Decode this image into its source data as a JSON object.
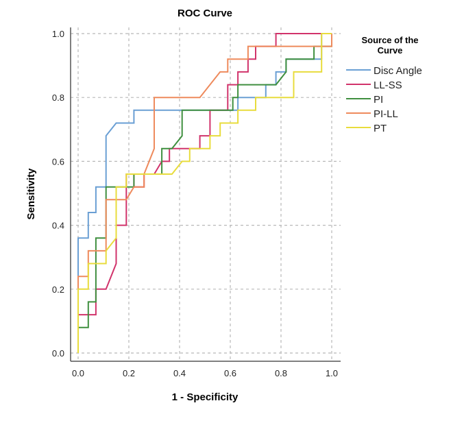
{
  "chart_data": {
    "type": "line",
    "title": "ROC Curve",
    "xlabel": "1 - Specificity",
    "ylabel": "Sensitivity",
    "xlim": [
      0,
      1
    ],
    "ylim": [
      0,
      1
    ],
    "xticks": [
      "0.0",
      "0.2",
      "0.4",
      "0.6",
      "0.8",
      "1.0"
    ],
    "yticks": [
      "0.0",
      "0.2",
      "0.4",
      "0.6",
      "0.8",
      "1.0"
    ],
    "grid": true,
    "legend": {
      "title": "Source of the Curve",
      "title_lines": [
        "Source of the",
        "Curve"
      ],
      "placement": "right"
    },
    "series": [
      {
        "name": "Disc Angle",
        "color": "#6a9fd4",
        "points": [
          [
            0,
            0
          ],
          [
            0,
            0.36
          ],
          [
            0.04,
            0.36
          ],
          [
            0.04,
            0.44
          ],
          [
            0.07,
            0.44
          ],
          [
            0.07,
            0.52
          ],
          [
            0.11,
            0.52
          ],
          [
            0.11,
            0.68
          ],
          [
            0.15,
            0.72
          ],
          [
            0.22,
            0.72
          ],
          [
            0.22,
            0.76
          ],
          [
            0.63,
            0.76
          ],
          [
            0.63,
            0.8
          ],
          [
            0.74,
            0.8
          ],
          [
            0.74,
            0.84
          ],
          [
            0.78,
            0.84
          ],
          [
            0.78,
            0.88
          ],
          [
            0.82,
            0.88
          ],
          [
            0.82,
            0.92
          ],
          [
            0.96,
            0.92
          ],
          [
            0.96,
            1.0
          ],
          [
            1,
            1
          ]
        ]
      },
      {
        "name": "LL-SS",
        "color": "#d1336b",
        "points": [
          [
            0,
            0
          ],
          [
            0,
            0.12
          ],
          [
            0.07,
            0.12
          ],
          [
            0.07,
            0.2
          ],
          [
            0.11,
            0.2
          ],
          [
            0.15,
            0.28
          ],
          [
            0.15,
            0.4
          ],
          [
            0.19,
            0.4
          ],
          [
            0.19,
            0.56
          ],
          [
            0.22,
            0.56
          ],
          [
            0.22,
            0.52
          ],
          [
            0.26,
            0.52
          ],
          [
            0.26,
            0.56
          ],
          [
            0.3,
            0.56
          ],
          [
            0.33,
            0.6
          ],
          [
            0.36,
            0.6
          ],
          [
            0.36,
            0.64
          ],
          [
            0.41,
            0.64
          ],
          [
            0.48,
            0.64
          ],
          [
            0.48,
            0.68
          ],
          [
            0.52,
            0.68
          ],
          [
            0.52,
            0.76
          ],
          [
            0.59,
            0.76
          ],
          [
            0.59,
            0.84
          ],
          [
            0.63,
            0.84
          ],
          [
            0.63,
            0.88
          ],
          [
            0.67,
            0.88
          ],
          [
            0.67,
            0.92
          ],
          [
            0.7,
            0.92
          ],
          [
            0.7,
            0.96
          ],
          [
            0.78,
            0.96
          ],
          [
            0.78,
            1.0
          ],
          [
            1,
            1
          ]
        ]
      },
      {
        "name": "PI",
        "color": "#3f8f3f",
        "points": [
          [
            0,
            0
          ],
          [
            0,
            0.08
          ],
          [
            0.04,
            0.08
          ],
          [
            0.04,
            0.16
          ],
          [
            0.07,
            0.16
          ],
          [
            0.07,
            0.36
          ],
          [
            0.11,
            0.36
          ],
          [
            0.11,
            0.52
          ],
          [
            0.22,
            0.52
          ],
          [
            0.22,
            0.56
          ],
          [
            0.33,
            0.56
          ],
          [
            0.33,
            0.64
          ],
          [
            0.37,
            0.64
          ],
          [
            0.41,
            0.68
          ],
          [
            0.41,
            0.76
          ],
          [
            0.61,
            0.76
          ],
          [
            0.61,
            0.8
          ],
          [
            0.63,
            0.8
          ],
          [
            0.63,
            0.84
          ],
          [
            0.78,
            0.84
          ],
          [
            0.82,
            0.88
          ],
          [
            0.82,
            0.92
          ],
          [
            0.93,
            0.92
          ],
          [
            0.93,
            0.96
          ],
          [
            1,
            0.96
          ],
          [
            1,
            1
          ]
        ]
      },
      {
        "name": "PI-LL",
        "color": "#ee8a5c",
        "points": [
          [
            0,
            0
          ],
          [
            0,
            0.24
          ],
          [
            0.04,
            0.24
          ],
          [
            0.04,
            0.32
          ],
          [
            0.11,
            0.32
          ],
          [
            0.11,
            0.48
          ],
          [
            0.19,
            0.48
          ],
          [
            0.22,
            0.52
          ],
          [
            0.26,
            0.52
          ],
          [
            0.26,
            0.56
          ],
          [
            0.3,
            0.64
          ],
          [
            0.3,
            0.8
          ],
          [
            0.48,
            0.8
          ],
          [
            0.56,
            0.88
          ],
          [
            0.59,
            0.88
          ],
          [
            0.59,
            0.92
          ],
          [
            0.67,
            0.92
          ],
          [
            0.67,
            0.96
          ],
          [
            1,
            0.96
          ],
          [
            1,
            1
          ]
        ]
      },
      {
        "name": "PT",
        "color": "#e8dc3c",
        "points": [
          [
            0,
            0
          ],
          [
            0,
            0.2
          ],
          [
            0.04,
            0.2
          ],
          [
            0.04,
            0.28
          ],
          [
            0.11,
            0.28
          ],
          [
            0.11,
            0.32
          ],
          [
            0.15,
            0.36
          ],
          [
            0.15,
            0.52
          ],
          [
            0.19,
            0.52
          ],
          [
            0.19,
            0.56
          ],
          [
            0.26,
            0.56
          ],
          [
            0.37,
            0.56
          ],
          [
            0.41,
            0.6
          ],
          [
            0.44,
            0.6
          ],
          [
            0.44,
            0.64
          ],
          [
            0.52,
            0.64
          ],
          [
            0.52,
            0.68
          ],
          [
            0.56,
            0.68
          ],
          [
            0.56,
            0.72
          ],
          [
            0.63,
            0.72
          ],
          [
            0.63,
            0.76
          ],
          [
            0.7,
            0.76
          ],
          [
            0.7,
            0.8
          ],
          [
            0.85,
            0.8
          ],
          [
            0.85,
            0.88
          ],
          [
            0.96,
            0.88
          ],
          [
            0.96,
            1.0
          ],
          [
            1,
            1
          ]
        ]
      }
    ]
  }
}
